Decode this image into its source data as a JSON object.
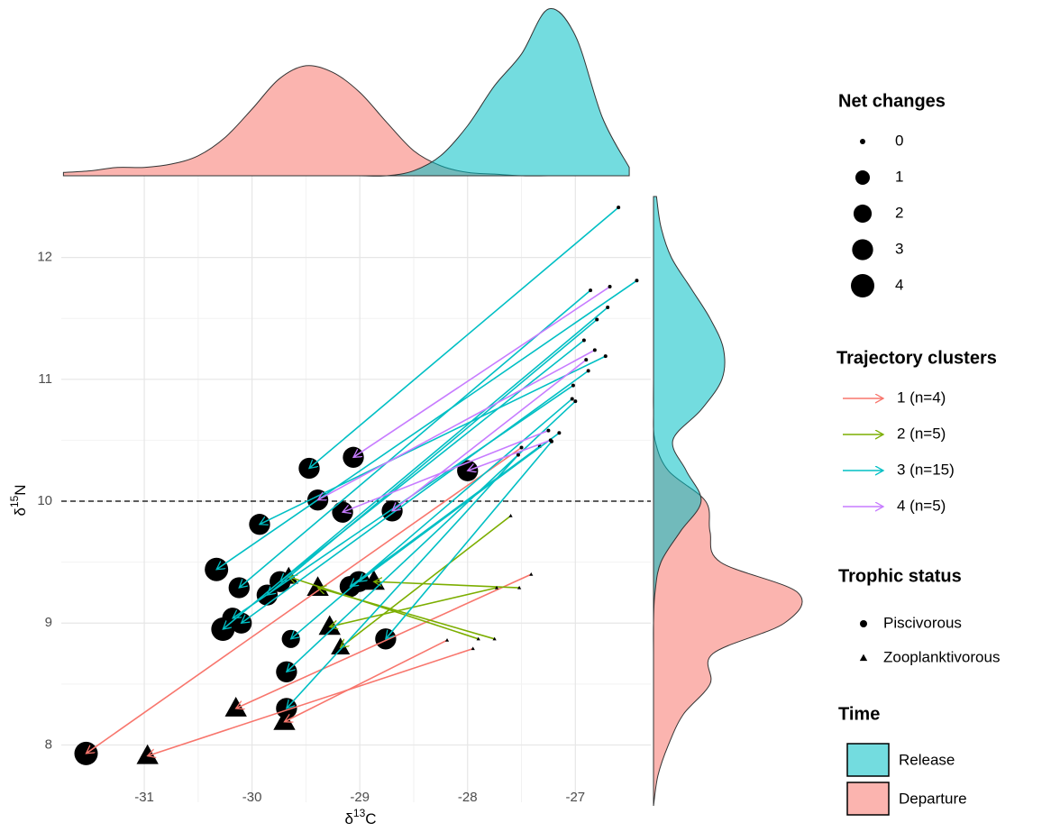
{
  "chart_data": {
    "type": "trajectory",
    "x_label": {
      "prefix": "δ",
      "sup": "13",
      "suffix": "C"
    },
    "y_label": {
      "prefix": "δ",
      "sup": "15",
      "suffix": "N"
    },
    "xlim": [
      -31.77,
      -26.3
    ],
    "ylim": [
      7.53,
      12.67
    ],
    "xticks": [
      -31,
      -30,
      -29,
      -28,
      -27
    ],
    "yticks": [
      8,
      9,
      10,
      11,
      12
    ],
    "grid": true,
    "hline": 10,
    "series": [
      {
        "name": "1 (n=4)",
        "color": "#f8766d",
        "x_start": [
          -27.5,
          -27.41,
          -28.19,
          -27.95
        ],
        "y_start": [
          10.44,
          9.4,
          8.86,
          8.79
        ],
        "x_end": [
          -31.54,
          -30.15,
          -29.7,
          -30.97
        ],
        "y_end": [
          7.93,
          8.3,
          8.19,
          7.91
        ],
        "net_change": [
          4,
          3,
          3,
          3
        ],
        "trophic": [
          0,
          1,
          1,
          1
        ]
      },
      {
        "name": "2 (n=5)",
        "color": "#7cae00",
        "x_start": [
          -27.6,
          -27.52,
          -27.75,
          -27.9,
          -27.73
        ],
        "y_start": [
          9.88,
          9.29,
          8.87,
          8.87,
          9.29
        ],
        "x_end": [
          -29.18,
          -28.87,
          -29.39,
          -29.66,
          -29.28
        ],
        "y_end": [
          8.8,
          9.34,
          9.29,
          9.38,
          8.97
        ],
        "net_change": [
          2,
          3,
          3,
          2,
          3
        ],
        "trophic": [
          1,
          1,
          1,
          1,
          1
        ]
      },
      {
        "name": "3 (n=15)",
        "color": "#00bfc4",
        "x_start": [
          -26.6,
          -26.43,
          -26.7,
          -26.72,
          -26.86,
          -26.8,
          -26.92,
          -26.88,
          -27.02,
          -27.03,
          -27.0,
          -27.33,
          -27.53,
          -27.22,
          -27.15
        ],
        "y_start": [
          12.41,
          11.81,
          11.59,
          11.19,
          11.73,
          11.49,
          11.32,
          11.07,
          10.95,
          10.84,
          10.82,
          10.45,
          10.38,
          10.49,
          10.56
        ],
        "x_end": [
          -29.47,
          -30.33,
          -30.27,
          -29.93,
          -30.12,
          -29.86,
          -29.74,
          -30.1,
          -30.18,
          -29.64,
          -29.68,
          -29.09,
          -29.68,
          -28.76,
          -29.01
        ],
        "y_end": [
          10.27,
          9.44,
          8.95,
          9.81,
          9.29,
          9.23,
          9.34,
          9.0,
          9.04,
          8.87,
          8.6,
          9.3,
          8.3,
          8.87,
          9.34
        ],
        "net_change": [
          3,
          4,
          4,
          3,
          3,
          3,
          3,
          3,
          3,
          2,
          3,
          3,
          3,
          3,
          3
        ],
        "trophic": [
          0,
          0,
          0,
          0,
          0,
          0,
          0,
          0,
          0,
          0,
          0,
          0,
          0,
          0,
          0
        ]
      },
      {
        "name": "4 (n=5)",
        "color": "#c77cff",
        "x_start": [
          -26.68,
          -26.82,
          -27.25,
          -27.23,
          -26.9
        ],
        "y_start": [
          11.76,
          11.24,
          10.58,
          10.5,
          11.16
        ],
        "x_end": [
          -29.06,
          -29.39,
          -29.16,
          -28.0,
          -28.7
        ],
        "y_end": [
          10.36,
          10.01,
          9.91,
          10.25,
          9.92
        ],
        "net_change": [
          3,
          3,
          3,
          3,
          3
        ],
        "trophic": [
          0,
          0,
          0,
          0,
          0
        ]
      }
    ],
    "size_legend": {
      "title": "Net changes",
      "values": [
        0,
        1,
        2,
        3,
        4
      ]
    },
    "cluster_legend_title": "Trajectory clusters",
    "trophic_legend": {
      "title": "Trophic status",
      "items": [
        {
          "label": "Piscivorous",
          "shape": "circle"
        },
        {
          "label": "Zooplanktivorous",
          "shape": "triangle"
        }
      ]
    },
    "time_legend_title": "Time",
    "density_x": {
      "x": [
        -31.75,
        -31.5,
        -31.25,
        -31,
        -30.75,
        -30.5,
        -30.25,
        -30,
        -29.75,
        -29.5,
        -29.25,
        -29,
        -28.75,
        -28.5,
        -28.25,
        -28,
        -27.75,
        -27.5,
        -27.25,
        -27,
        -26.75,
        -26.5
      ],
      "series": [
        {
          "name": "Release",
          "color": "#00bfc4",
          "values": [
            0,
            0,
            0,
            0,
            0,
            0,
            0,
            0,
            0,
            0,
            0,
            0,
            0,
            0.03,
            0.12,
            0.3,
            0.54,
            0.73,
            1.0,
            0.84,
            0.35,
            0.05
          ]
        },
        {
          "name": "Departure",
          "color": "#f8766d",
          "values": [
            0.02,
            0.03,
            0.05,
            0.05,
            0.07,
            0.12,
            0.23,
            0.4,
            0.58,
            0.66,
            0.62,
            0.5,
            0.32,
            0.15,
            0.06,
            0.02,
            0.01,
            0,
            0,
            0,
            0,
            0
          ]
        }
      ]
    },
    "density_y": {
      "y": [
        7.5,
        7.75,
        8,
        8.25,
        8.5,
        8.75,
        9,
        9.25,
        9.5,
        9.75,
        10,
        10.25,
        10.5,
        10.75,
        11,
        11.25,
        11.5,
        11.75,
        12,
        12.25,
        12.5
      ],
      "series": [
        {
          "name": "Release",
          "color": "#00bfc4",
          "values": [
            0,
            0,
            0,
            0,
            0,
            0,
            0,
            0.01,
            0.05,
            0.18,
            0.32,
            0.22,
            0.13,
            0.32,
            0.46,
            0.47,
            0.38,
            0.25,
            0.12,
            0.05,
            0.02
          ]
        },
        {
          "name": "Departure",
          "color": "#f8766d",
          "values": [
            0,
            0.03,
            0.1,
            0.2,
            0.38,
            0.4,
            0.88,
            0.97,
            0.45,
            0.38,
            0.35,
            0.1,
            0.01,
            0,
            0,
            0,
            0,
            0,
            0,
            0,
            0
          ]
        }
      ]
    }
  }
}
